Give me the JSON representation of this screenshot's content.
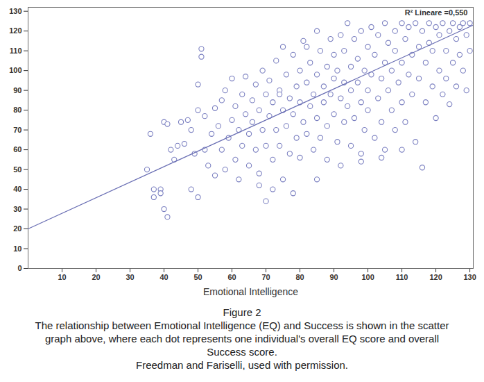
{
  "chart_data": {
    "type": "scatter",
    "title": "Figure 2",
    "caption": "The relationship between Emotional Intelligence (EQ) and Success is shown in the scatter graph above, where each dot represents one individual's overall EQ score and overall Success score.",
    "source": "Freedman and Fariselli, used with permission.",
    "x_label": "Emotional Intelligence",
    "annotation": "R² Lineare =0,550",
    "xlim": [
      0,
      131
    ],
    "ylim": [
      0,
      132
    ],
    "xticks": [
      10,
      20,
      30,
      40,
      50,
      60,
      70,
      80,
      90,
      100,
      110,
      120,
      130
    ],
    "yticks": [
      0,
      10,
      20,
      30,
      40,
      50,
      60,
      70,
      80,
      90,
      100,
      110,
      120,
      130
    ],
    "grid": false,
    "color": "#7a7fc0",
    "marker": "circle_open",
    "x": [
      35,
      36,
      37,
      37,
      39,
      39,
      40,
      41,
      40,
      41,
      42,
      43,
      44,
      45,
      46,
      47,
      48,
      48,
      49,
      50,
      50,
      51,
      51,
      50,
      52,
      52,
      53,
      54,
      55,
      55,
      56,
      57,
      57,
      58,
      58,
      59,
      60,
      60,
      61,
      61,
      62,
      62,
      63,
      63,
      64,
      64,
      65,
      65,
      66,
      66,
      67,
      67,
      68,
      68,
      69,
      69,
      70,
      70,
      70,
      71,
      71,
      72,
      72,
      73,
      73,
      74,
      74,
      75,
      75,
      75,
      76,
      76,
      77,
      77,
      78,
      78,
      79,
      79,
      80,
      80,
      80,
      81,
      81,
      82,
      82,
      83,
      83,
      84,
      84,
      85,
      85,
      85,
      86,
      86,
      87,
      87,
      88,
      88,
      88,
      89,
      89,
      90,
      90,
      90,
      91,
      91,
      92,
      92,
      93,
      93,
      93,
      94,
      94,
      95,
      95,
      95,
      96,
      96,
      97,
      97,
      98,
      98,
      98,
      99,
      99,
      100,
      100,
      100,
      101,
      101,
      102,
      102,
      103,
      103,
      104,
      104,
      105,
      105,
      105,
      106,
      106,
      107,
      107,
      108,
      108,
      108,
      109,
      110,
      110,
      110,
      111,
      111,
      112,
      112,
      113,
      113,
      114,
      114,
      115,
      115,
      116,
      116,
      117,
      117,
      118,
      118,
      119,
      119,
      120,
      120,
      121,
      121,
      122,
      122,
      123,
      123,
      124,
      124,
      125,
      125,
      126,
      126,
      127,
      127,
      128,
      128,
      129,
      129,
      130,
      130,
      68,
      72,
      78,
      85,
      92,
      98,
      104,
      110,
      74,
      82
    ],
    "values": [
      50,
      68,
      40,
      36,
      40,
      38,
      30,
      26,
      74,
      73,
      60,
      55,
      62,
      74,
      63,
      75,
      70,
      40,
      58,
      36,
      93,
      107,
      111,
      80,
      77,
      60,
      52,
      68,
      81,
      47,
      72,
      85,
      60,
      90,
      50,
      66,
      75,
      96,
      55,
      82,
      70,
      45,
      88,
      62,
      78,
      97,
      52,
      68,
      85,
      74,
      60,
      93,
      80,
      48,
      100,
      70,
      88,
      34,
      62,
      77,
      95,
      55,
      84,
      105,
      70,
      90,
      62,
      80,
      112,
      45,
      98,
      72,
      86,
      58,
      108,
      78,
      92,
      66,
      100,
      84,
      56,
      74,
      115,
      94,
      68,
      104,
      82,
      88,
      60,
      120,
      76,
      98,
      110,
      66,
      92,
      84,
      102,
      72,
      55,
      116,
      88,
      96,
      78,
      108,
      64,
      100,
      118,
      86,
      94,
      74,
      110,
      124,
      82,
      102,
      62,
      90,
      116,
      76,
      106,
      94,
      84,
      120,
      58,
      100,
      70,
      112,
      90,
      80,
      122,
      98,
      66,
      108,
      118,
      86,
      96,
      74,
      124,
      104,
      60,
      114,
      90,
      80,
      100,
      120,
      110,
      70,
      94,
      124,
      104,
      84,
      116,
      74,
      98,
      122,
      108,
      88,
      124,
      64,
      112,
      96,
      51,
      120,
      104,
      84,
      124,
      114,
      92,
      110,
      122,
      76,
      100,
      118,
      88,
      124,
      110,
      96,
      120,
      83,
      104,
      124,
      116,
      92,
      122,
      108,
      124,
      100,
      118,
      90,
      124,
      110,
      42,
      40,
      38,
      45,
      52,
      54,
      56,
      60,
      88,
      112
    ],
    "trend_line": {
      "x": [
        0,
        131
      ],
      "y": [
        20,
        123
      ],
      "color": "#6a6fb4",
      "line_style": "solid"
    }
  }
}
